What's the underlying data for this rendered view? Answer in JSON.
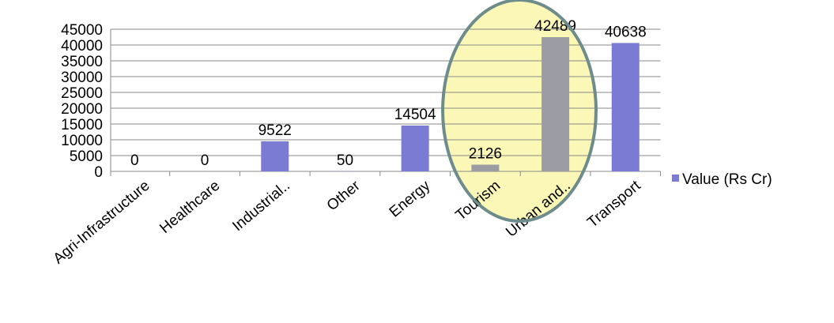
{
  "chart_data": {
    "type": "bar",
    "categories": [
      "Agri-Infrastructure",
      "Healthcare",
      "Industrial..",
      "Other",
      "Energy",
      "Tourism",
      "Urban and..",
      "Transport"
    ],
    "series": [
      {
        "name": "Value (Rs Cr)",
        "color": "#7b7bd3",
        "values": [
          0,
          0,
          9522,
          50,
          14504,
          2126,
          42489,
          40638
        ],
        "colors": [
          "#7b7bd3",
          "#7b7bd3",
          "#7b7bd3",
          "#7b7bd3",
          "#7b7bd3",
          "#9c9ca4",
          "#9c9ca4",
          "#7b7bd3"
        ]
      }
    ],
    "ylim": [
      0,
      45000
    ],
    "yticks": [
      0,
      5000,
      10000,
      15000,
      20000,
      25000,
      30000,
      35000,
      40000,
      45000
    ],
    "grid": true,
    "legend": "right"
  }
}
